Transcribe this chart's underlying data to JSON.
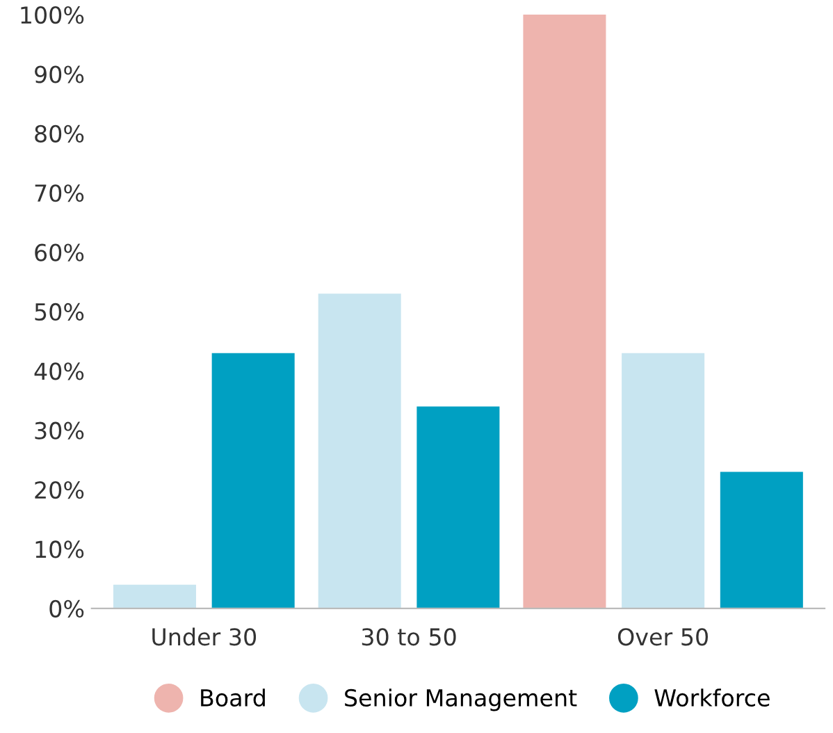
{
  "chart_data": {
    "type": "bar",
    "categories": [
      "Under 30",
      "30 to 50",
      "Over 50"
    ],
    "series": [
      {
        "name": "Board",
        "color": "#eeb4ae",
        "values": [
          null,
          null,
          100
        ]
      },
      {
        "name": "Senior Management",
        "color": "#c8e5f0",
        "values": [
          4,
          53,
          43
        ]
      },
      {
        "name": "Workforce",
        "color": "#00a0c2",
        "values": [
          43,
          34,
          23
        ]
      }
    ],
    "ylim": [
      0,
      100
    ],
    "yticks": [
      {
        "value": 0,
        "label": "0%"
      },
      {
        "value": 10,
        "label": "10%"
      },
      {
        "value": 20,
        "label": "20%"
      },
      {
        "value": 30,
        "label": "30%"
      },
      {
        "value": 40,
        "label": "40%"
      },
      {
        "value": 50,
        "label": "50%"
      },
      {
        "value": 60,
        "label": "60%"
      },
      {
        "value": 70,
        "label": "70%"
      },
      {
        "value": 80,
        "label": "80%"
      },
      {
        "value": 90,
        "label": "90%"
      },
      {
        "value": 100,
        "label": "100%"
      }
    ],
    "grid": false,
    "legend": "bottom"
  }
}
